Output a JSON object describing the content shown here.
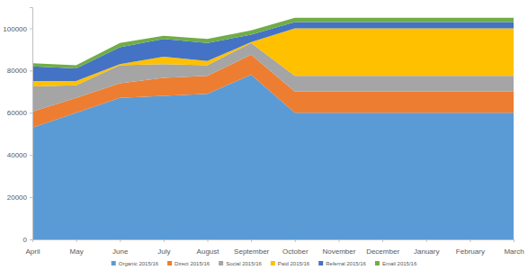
{
  "chart_data": {
    "type": "area",
    "stacked": true,
    "grid": false,
    "legend": "bottom",
    "categories": [
      "April",
      "May",
      "June",
      "July",
      "August",
      "September",
      "October",
      "November",
      "December",
      "January",
      "February",
      "March"
    ],
    "ylim": [
      0,
      110000
    ],
    "yticks": [
      0,
      20000,
      40000,
      60000,
      80000,
      100000
    ],
    "series": [
      {
        "name": "Organic 2015/16",
        "color": "#5b9bd5",
        "values": [
          53000,
          60000,
          67000,
          68000,
          69000,
          78000,
          60000,
          60000,
          60000,
          60000,
          60000,
          60000
        ]
      },
      {
        "name": "Direct 2015/16",
        "color": "#ed7d31",
        "values": [
          7500,
          7000,
          7000,
          8500,
          8500,
          9500,
          10000,
          10000,
          10000,
          10000,
          10000,
          10000
        ]
      },
      {
        "name": "Social 2015/16",
        "color": "#a5a5a5",
        "values": [
          12000,
          6000,
          8500,
          6500,
          5000,
          5500,
          7500,
          7500,
          7500,
          7500,
          7500,
          7500
        ]
      },
      {
        "name": "Paid 2015/16",
        "color": "#ffc000",
        "values": [
          2500,
          2000,
          500,
          3500,
          2000,
          500,
          22500,
          22500,
          22500,
          22500,
          22500,
          22500
        ]
      },
      {
        "name": "Referral 2015/16",
        "color": "#4472c4",
        "values": [
          7000,
          6000,
          8000,
          8500,
          8500,
          3500,
          3000,
          3000,
          3000,
          3000,
          3000,
          3000
        ]
      },
      {
        "name": "Email 2015/16",
        "color": "#70ad47",
        "values": [
          1500,
          1500,
          2000,
          1500,
          2000,
          2000,
          2000,
          2000,
          2000,
          2000,
          2000,
          2000
        ]
      }
    ]
  }
}
